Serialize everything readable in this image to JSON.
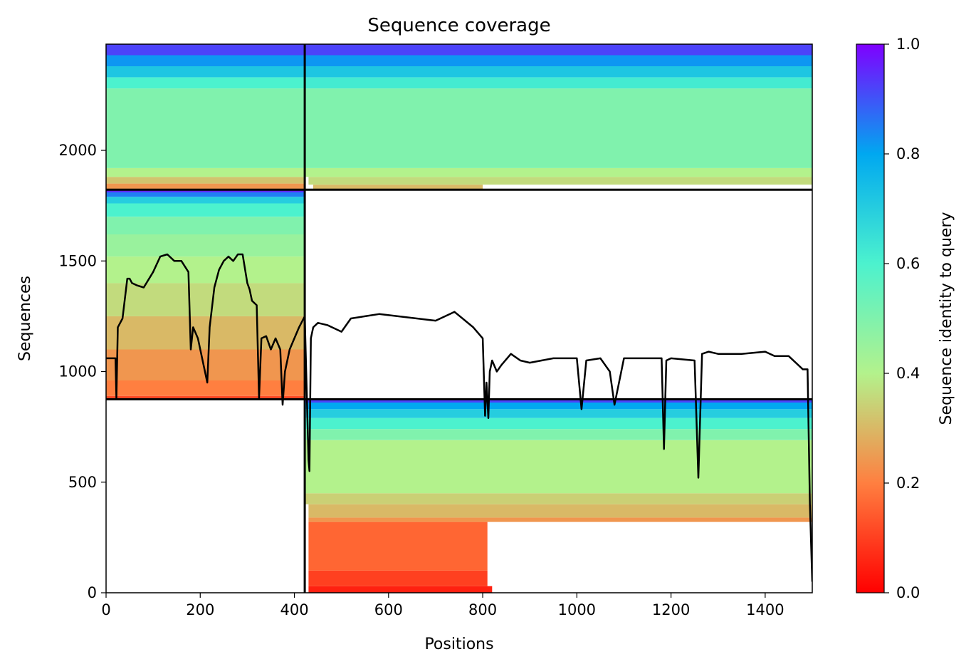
{
  "chart_data": {
    "type": "heatmap",
    "title": "Sequence coverage",
    "xlabel": "Positions",
    "ylabel": "Sequences",
    "xlim": [
      0,
      1500
    ],
    "ylim": [
      0,
      2480
    ],
    "x_ticks": [
      0,
      200,
      400,
      600,
      800,
      1000,
      1200,
      1400
    ],
    "y_ticks": [
      0,
      500,
      1000,
      1500,
      2000
    ],
    "colorbar": {
      "label": "Sequence identity to query",
      "range": [
        0,
        1
      ],
      "ticks": [
        "0.0",
        "0.2",
        "0.4",
        "0.6",
        "0.8",
        "1.0"
      ],
      "colormap": "rainbow_r",
      "colors": [
        "#ff0000",
        "#ff7f40",
        "#b3f28c",
        "#4cf2ce",
        "#00a8f0",
        "#7f00ff"
      ]
    },
    "grid": false,
    "legend": "none",
    "chain_boundaries": {
      "x": [
        422
      ],
      "y": [
        875,
        1822
      ]
    },
    "blocks": [
      {
        "x": [
          0,
          422
        ],
        "y": [
          875,
          1822
        ],
        "identity_bands": [
          {
            "y": [
              875,
              890
            ],
            "identity": 0.12
          },
          {
            "y": [
              890,
              960
            ],
            "identity": 0.2
          },
          {
            "y": [
              960,
              1100
            ],
            "identity": 0.24
          },
          {
            "y": [
              1100,
              1250
            ],
            "identity": 0.3
          },
          {
            "y": [
              1250,
              1400
            ],
            "identity": 0.36
          },
          {
            "y": [
              1400,
              1520
            ],
            "identity": 0.4
          },
          {
            "y": [
              1520,
              1620
            ],
            "identity": 0.45
          },
          {
            "y": [
              1620,
              1700
            ],
            "identity": 0.5
          },
          {
            "y": [
              1700,
              1760
            ],
            "identity": 0.6
          },
          {
            "y": [
              1760,
              1790
            ],
            "identity": 0.7
          },
          {
            "y": [
              1790,
              1810
            ],
            "identity": 0.85
          },
          {
            "y": [
              1810,
              1822
            ],
            "identity": 0.95
          }
        ]
      },
      {
        "x": [
          0,
          422
        ],
        "y": [
          1822,
          2480
        ],
        "identity_bands": [
          {
            "y": [
              1822,
              1850
            ],
            "identity": 0.24
          },
          {
            "y": [
              1850,
              1880
            ],
            "identity": 0.32
          },
          {
            "y": [
              1880,
              1920
            ],
            "identity": 0.4
          },
          {
            "y": [
              1920,
              2280
            ],
            "identity": 0.5
          },
          {
            "y": [
              2280,
              2330
            ],
            "identity": 0.6
          },
          {
            "y": [
              2330,
              2380
            ],
            "identity": 0.72
          },
          {
            "y": [
              2380,
              2430
            ],
            "identity": 0.82
          },
          {
            "y": [
              2430,
              2480
            ],
            "identity": 0.92
          }
        ]
      },
      {
        "x": [
          422,
          1500
        ],
        "y": [
          1822,
          2480
        ],
        "identity_bands": [
          {
            "y": [
              1825,
              1845
            ],
            "identity": 0.3,
            "x": [
              440,
              800
            ]
          },
          {
            "y": [
              1845,
              1880
            ],
            "identity": 0.36,
            "x": [
              430,
              1500
            ]
          },
          {
            "y": [
              1880,
              1920
            ],
            "identity": 0.4
          },
          {
            "y": [
              1920,
              2280
            ],
            "identity": 0.5
          },
          {
            "y": [
              2280,
              2330
            ],
            "identity": 0.62
          },
          {
            "y": [
              2330,
              2380
            ],
            "identity": 0.72
          },
          {
            "y": [
              2380,
              2430
            ],
            "identity": 0.82
          },
          {
            "y": [
              2430,
              2480
            ],
            "identity": 0.92
          }
        ]
      },
      {
        "x": [
          422,
          1500
        ],
        "y": [
          0,
          875
        ],
        "identity_bands": [
          {
            "y": [
              0,
              30
            ],
            "identity": 0.05,
            "x": [
              430,
              820
            ]
          },
          {
            "y": [
              30,
              100
            ],
            "identity": 0.1,
            "x": [
              430,
              810
            ]
          },
          {
            "y": [
              100,
              320
            ],
            "identity": 0.16,
            "x": [
              430,
              810
            ]
          },
          {
            "y": [
              320,
              340
            ],
            "identity": 0.24,
            "x": [
              430,
              1500
            ]
          },
          {
            "y": [
              340,
              400
            ],
            "identity": 0.3,
            "x": [
              430,
              1500
            ]
          },
          {
            "y": [
              400,
              450
            ],
            "identity": 0.34
          },
          {
            "y": [
              450,
              690
            ],
            "identity": 0.4
          },
          {
            "y": [
              690,
              740
            ],
            "identity": 0.5
          },
          {
            "y": [
              740,
              790
            ],
            "identity": 0.6
          },
          {
            "y": [
              790,
              830
            ],
            "identity": 0.7
          },
          {
            "y": [
              830,
              860
            ],
            "identity": 0.8
          },
          {
            "y": [
              860,
              875
            ],
            "identity": 0.92
          }
        ]
      }
    ],
    "coverage_line": {
      "color": "#000000",
      "x": [
        0,
        20,
        22,
        25,
        35,
        45,
        50,
        55,
        65,
        80,
        100,
        115,
        130,
        145,
        160,
        175,
        180,
        185,
        195,
        210,
        215,
        220,
        230,
        240,
        250,
        260,
        270,
        280,
        290,
        300,
        305,
        310,
        320,
        325,
        330,
        340,
        350,
        360,
        370,
        375,
        380,
        390,
        400,
        410,
        422,
        430,
        432,
        435,
        440,
        450,
        470,
        500,
        520,
        550,
        580,
        620,
        660,
        700,
        740,
        780,
        800,
        805,
        808,
        812,
        815,
        820,
        830,
        840,
        860,
        880,
        900,
        950,
        1000,
        1010,
        1020,
        1050,
        1070,
        1080,
        1100,
        1150,
        1180,
        1185,
        1190,
        1200,
        1250,
        1258,
        1262,
        1266,
        1280,
        1300,
        1350,
        1400,
        1420,
        1450,
        1480,
        1490,
        1495,
        1500
      ],
      "y": [
        1060,
        1060,
        880,
        1200,
        1240,
        1420,
        1420,
        1400,
        1390,
        1380,
        1450,
        1520,
        1530,
        1500,
        1500,
        1450,
        1100,
        1200,
        1150,
        1000,
        950,
        1200,
        1380,
        1460,
        1500,
        1520,
        1500,
        1530,
        1530,
        1400,
        1370,
        1320,
        1300,
        880,
        1150,
        1160,
        1100,
        1150,
        1100,
        850,
        1000,
        1100,
        1150,
        1200,
        1250,
        600,
        550,
        1150,
        1200,
        1220,
        1210,
        1180,
        1240,
        1250,
        1260,
        1250,
        1240,
        1230,
        1270,
        1200,
        1150,
        800,
        950,
        790,
        1000,
        1050,
        1000,
        1030,
        1080,
        1050,
        1040,
        1060,
        1060,
        830,
        1050,
        1060,
        1000,
        850,
        1060,
        1060,
        1060,
        650,
        1050,
        1060,
        1050,
        520,
        800,
        1080,
        1090,
        1080,
        1080,
        1090,
        1070,
        1070,
        1010,
        1010,
        400,
        50
      ]
    }
  }
}
